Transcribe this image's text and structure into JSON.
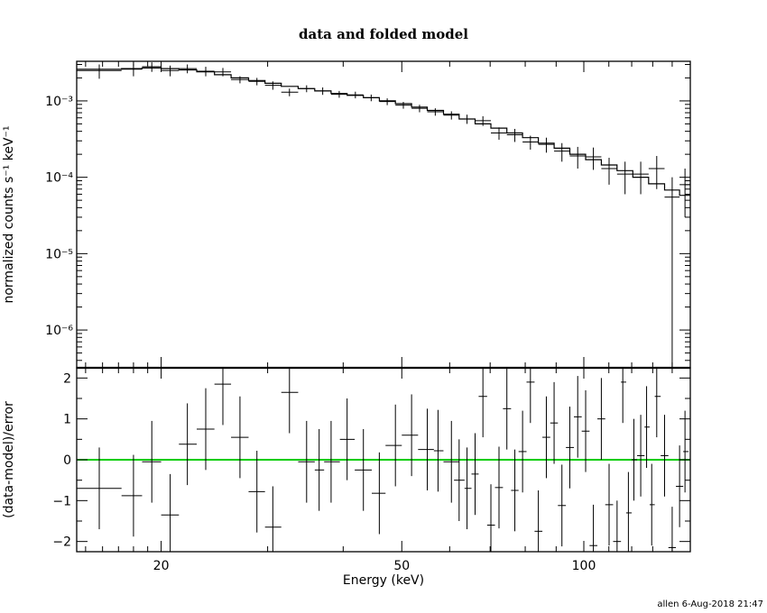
{
  "page": {
    "footer": "allen  6-Aug-2018 21:47"
  },
  "chart_data": [
    {
      "type": "line",
      "panel": "top",
      "title": "data and folded model",
      "ylabel": "normalized counts s⁻¹ keV⁻¹",
      "xscale": "log",
      "yscale": "log",
      "xlim": [
        14.5,
        150
      ],
      "ylim": [
        3.2e-07,
        0.0033
      ],
      "ytick_labels": [
        "10⁻³",
        "10⁻⁴",
        "10⁻⁵",
        "10⁻⁶"
      ],
      "ytick_values": [
        0.001,
        0.0001,
        1e-05,
        1e-06
      ],
      "model_step": {
        "name": "folded model",
        "edges": [
          14.5,
          17.2,
          18.6,
          20.0,
          21.4,
          22.9,
          24.5,
          26.1,
          27.9,
          29.7,
          31.6,
          33.7,
          35.9,
          38.2,
          40.6,
          43.2,
          45.9,
          48.8,
          51.9,
          55.1,
          58.6,
          62.2,
          66.1,
          70.2,
          74.6,
          79.2,
          84.1,
          89.3,
          94.8,
          100.7,
          106.9,
          113.5,
          120.5,
          128.0,
          136.0,
          144.0,
          150.0
        ],
        "values": [
          0.0026,
          0.00265,
          0.0027,
          0.00265,
          0.00255,
          0.0024,
          0.0022,
          0.002,
          0.00185,
          0.0017,
          0.00155,
          0.00145,
          0.00135,
          0.00125,
          0.00118,
          0.0011,
          0.001,
          0.00092,
          0.00083,
          0.00075,
          0.00067,
          0.00058,
          0.0005,
          0.00044,
          0.00038,
          0.00033,
          0.00028,
          0.00024,
          0.0002,
          0.00017,
          0.000145,
          0.000122,
          0.0001,
          8.2e-05,
          6.8e-05,
          5.8e-05
        ]
      },
      "points": [
        {
          "x": 15.8,
          "xlo": 14.5,
          "xhi": 17.2,
          "y": 0.0025,
          "ylo": 0.00195,
          "yhi": 0.003
        },
        {
          "x": 18.0,
          "xlo": 17.2,
          "xhi": 18.6,
          "y": 0.0026,
          "ylo": 0.0021,
          "yhi": 0.0031
        },
        {
          "x": 19.3,
          "xlo": 18.6,
          "xhi": 20.0,
          "y": 0.0028,
          "ylo": 0.0024,
          "yhi": 0.0032
        },
        {
          "x": 20.7,
          "xlo": 20.0,
          "xhi": 21.4,
          "y": 0.0025,
          "ylo": 0.0021,
          "yhi": 0.0029
        },
        {
          "x": 22.1,
          "xlo": 21.4,
          "xhi": 22.9,
          "y": 0.00265,
          "ylo": 0.0023,
          "yhi": 0.003
        },
        {
          "x": 23.7,
          "xlo": 22.9,
          "xhi": 24.5,
          "y": 0.00245,
          "ylo": 0.0021,
          "yhi": 0.0028
        },
        {
          "x": 25.3,
          "xlo": 24.5,
          "xhi": 26.1,
          "y": 0.0024,
          "ylo": 0.0021,
          "yhi": 0.0027
        },
        {
          "x": 27.0,
          "xlo": 26.1,
          "xhi": 27.9,
          "y": 0.0019,
          "ylo": 0.0017,
          "yhi": 0.0021
        },
        {
          "x": 28.8,
          "xlo": 27.9,
          "xhi": 29.7,
          "y": 0.0018,
          "ylo": 0.0016,
          "yhi": 0.002
        },
        {
          "x": 30.6,
          "xlo": 29.7,
          "xhi": 31.6,
          "y": 0.0016,
          "ylo": 0.0014,
          "yhi": 0.0018
        },
        {
          "x": 32.6,
          "xlo": 31.6,
          "xhi": 33.7,
          "y": 0.0013,
          "ylo": 0.00115,
          "yhi": 0.00145
        },
        {
          "x": 34.8,
          "xlo": 33.7,
          "xhi": 35.9,
          "y": 0.00145,
          "ylo": 0.0013,
          "yhi": 0.0016
        },
        {
          "x": 37.0,
          "xlo": 35.9,
          "xhi": 38.2,
          "y": 0.00135,
          "ylo": 0.0012,
          "yhi": 0.0015
        },
        {
          "x": 39.4,
          "xlo": 38.2,
          "xhi": 40.6,
          "y": 0.00122,
          "ylo": 0.0011,
          "yhi": 0.00135
        },
        {
          "x": 41.9,
          "xlo": 40.6,
          "xhi": 43.2,
          "y": 0.0012,
          "ylo": 0.00108,
          "yhi": 0.00132
        },
        {
          "x": 44.5,
          "xlo": 43.2,
          "xhi": 45.9,
          "y": 0.0011,
          "ylo": 0.00099,
          "yhi": 0.00121
        },
        {
          "x": 47.3,
          "xlo": 45.9,
          "xhi": 48.8,
          "y": 0.00098,
          "ylo": 0.00088,
          "yhi": 0.00108
        },
        {
          "x": 50.3,
          "xlo": 48.8,
          "xhi": 51.9,
          "y": 0.00088,
          "ylo": 0.00079,
          "yhi": 0.00097
        },
        {
          "x": 53.5,
          "xlo": 51.9,
          "xhi": 55.1,
          "y": 0.0008,
          "ylo": 0.00071,
          "yhi": 0.00089
        },
        {
          "x": 56.8,
          "xlo": 55.1,
          "xhi": 58.6,
          "y": 0.00072,
          "ylo": 0.00064,
          "yhi": 0.0008
        },
        {
          "x": 60.4,
          "xlo": 58.6,
          "xhi": 62.2,
          "y": 0.00065,
          "ylo": 0.00057,
          "yhi": 0.00073
        },
        {
          "x": 64.1,
          "xlo": 62.2,
          "xhi": 66.1,
          "y": 0.00058,
          "ylo": 0.0005,
          "yhi": 0.00066
        },
        {
          "x": 68.1,
          "xlo": 66.1,
          "xhi": 70.2,
          "y": 0.00055,
          "ylo": 0.00047,
          "yhi": 0.00063
        },
        {
          "x": 72.4,
          "xlo": 70.2,
          "xhi": 74.6,
          "y": 0.00038,
          "ylo": 0.00031,
          "yhi": 0.00045
        },
        {
          "x": 76.9,
          "xlo": 74.6,
          "xhi": 79.2,
          "y": 0.00036,
          "ylo": 0.00029,
          "yhi": 0.00043
        },
        {
          "x": 81.6,
          "xlo": 79.2,
          "xhi": 84.1,
          "y": 0.00029,
          "ylo": 0.00023,
          "yhi": 0.00035
        },
        {
          "x": 86.7,
          "xlo": 84.1,
          "xhi": 89.3,
          "y": 0.00027,
          "ylo": 0.00021,
          "yhi": 0.00033
        },
        {
          "x": 92.0,
          "xlo": 89.3,
          "xhi": 94.8,
          "y": 0.00022,
          "ylo": 0.00016,
          "yhi": 0.00028
        },
        {
          "x": 97.7,
          "xlo": 94.8,
          "xhi": 100.7,
          "y": 0.00019,
          "ylo": 0.00013,
          "yhi": 0.00025
        },
        {
          "x": 103.7,
          "xlo": 100.7,
          "xhi": 106.9,
          "y": 0.000185,
          "ylo": 0.000125,
          "yhi": 0.000245
        },
        {
          "x": 110.1,
          "xlo": 106.9,
          "xhi": 113.5,
          "y": 0.00013,
          "ylo": 8e-05,
          "yhi": 0.00018
        },
        {
          "x": 117.0,
          "xlo": 113.5,
          "xhi": 120.5,
          "y": 0.00011,
          "ylo": 6e-05,
          "yhi": 0.00016
        },
        {
          "x": 124.2,
          "xlo": 120.5,
          "xhi": 128.0,
          "y": 0.00011,
          "ylo": 6e-05,
          "yhi": 0.00016
        },
        {
          "x": 132.0,
          "xlo": 128.0,
          "xhi": 136.0,
          "y": 0.00013,
          "ylo": 7e-05,
          "yhi": 0.00019
        },
        {
          "x": 140.0,
          "xlo": 136.0,
          "xhi": 144.0,
          "y": 5.5e-05,
          "ylo": 3.2e-07,
          "yhi": 0.0001
        },
        {
          "x": 147.0,
          "xlo": 144.0,
          "xhi": 150.0,
          "y": 8e-05,
          "ylo": 3e-05,
          "yhi": 0.00013
        }
      ]
    },
    {
      "type": "scatter",
      "panel": "bottom",
      "xlabel": "Energy (keV)",
      "ylabel": "(data-model)/error",
      "xscale": "log",
      "xlim": [
        14.5,
        150
      ],
      "ylim": [
        -2.25,
        2.25
      ],
      "xtick_labels": [
        "20",
        "50",
        "100"
      ],
      "xtick_values": [
        20,
        50,
        100
      ],
      "ytick_labels": [
        "2",
        "1",
        "0",
        "−1",
        "−2"
      ],
      "ytick_values": [
        2,
        1,
        0,
        -1,
        -2
      ],
      "reference_line": {
        "y": 0,
        "color": "#00cc00"
      },
      "points": [
        {
          "x": 15.8,
          "xlo": 14.5,
          "xhi": 17.2,
          "y": -0.7
        },
        {
          "x": 18.0,
          "xlo": 17.2,
          "xhi": 18.6,
          "y": -0.88
        },
        {
          "x": 19.3,
          "xlo": 18.6,
          "xhi": 20.0,
          "y": -0.05
        },
        {
          "x": 20.7,
          "xlo": 20.0,
          "xhi": 21.4,
          "y": -1.35
        },
        {
          "x": 22.1,
          "xlo": 21.4,
          "xhi": 22.9,
          "y": 0.38
        },
        {
          "x": 23.7,
          "xlo": 22.9,
          "xhi": 24.5,
          "y": 0.75
        },
        {
          "x": 25.3,
          "xlo": 24.5,
          "xhi": 26.1,
          "y": 1.85
        },
        {
          "x": 27.0,
          "xlo": 26.1,
          "xhi": 27.9,
          "y": 0.55
        },
        {
          "x": 28.8,
          "xlo": 27.9,
          "xhi": 29.7,
          "y": -0.78
        },
        {
          "x": 30.6,
          "xlo": 29.7,
          "xhi": 31.6,
          "y": -1.65
        },
        {
          "x": 32.6,
          "xlo": 31.6,
          "xhi": 33.7,
          "y": 1.65
        },
        {
          "x": 34.8,
          "xlo": 33.7,
          "xhi": 35.9,
          "y": -0.05
        },
        {
          "x": 36.5,
          "xlo": 35.9,
          "xhi": 37.2,
          "y": -0.25
        },
        {
          "x": 38.2,
          "xlo": 37.2,
          "xhi": 39.5,
          "y": -0.05
        },
        {
          "x": 40.6,
          "xlo": 39.5,
          "xhi": 41.8,
          "y": 0.5
        },
        {
          "x": 43.2,
          "xlo": 41.8,
          "xhi": 44.6,
          "y": -0.25
        },
        {
          "x": 45.9,
          "xlo": 44.6,
          "xhi": 47.0,
          "y": -0.82
        },
        {
          "x": 48.8,
          "xlo": 47.0,
          "xhi": 50.0,
          "y": 0.35
        },
        {
          "x": 51.9,
          "xlo": 50.0,
          "xhi": 53.2,
          "y": 0.6
        },
        {
          "x": 55.1,
          "xlo": 53.2,
          "xhi": 56.5,
          "y": 0.25
        },
        {
          "x": 57.4,
          "xlo": 56.5,
          "xhi": 58.6,
          "y": 0.22
        },
        {
          "x": 60.4,
          "xlo": 58.6,
          "xhi": 62.2,
          "y": -0.05
        },
        {
          "x": 62.2,
          "xlo": 61.0,
          "xhi": 63.5,
          "y": -0.5
        },
        {
          "x": 64.1,
          "xlo": 63.5,
          "xhi": 65.2,
          "y": -0.7
        },
        {
          "x": 66.1,
          "xlo": 65.2,
          "xhi": 67.0,
          "y": -0.35
        },
        {
          "x": 68.1,
          "xlo": 67.0,
          "xhi": 69.2,
          "y": 1.55
        },
        {
          "x": 70.2,
          "xlo": 69.2,
          "xhi": 71.3,
          "y": -1.6
        },
        {
          "x": 72.4,
          "xlo": 71.3,
          "xhi": 73.5,
          "y": -0.68
        },
        {
          "x": 74.6,
          "xlo": 73.5,
          "xhi": 75.8,
          "y": 1.25
        },
        {
          "x": 76.9,
          "xlo": 75.8,
          "xhi": 78.0,
          "y": -0.75
        },
        {
          "x": 79.2,
          "xlo": 78.0,
          "xhi": 80.4,
          "y": 0.2
        },
        {
          "x": 81.6,
          "xlo": 80.4,
          "xhi": 82.9,
          "y": 1.9
        },
        {
          "x": 84.1,
          "xlo": 82.9,
          "xhi": 85.4,
          "y": -1.75
        },
        {
          "x": 86.7,
          "xlo": 85.4,
          "xhi": 88.0,
          "y": 0.55
        },
        {
          "x": 89.3,
          "xlo": 88.0,
          "xhi": 90.6,
          "y": 0.9
        },
        {
          "x": 92.0,
          "xlo": 90.6,
          "xhi": 93.4,
          "y": -1.12
        },
        {
          "x": 94.8,
          "xlo": 93.4,
          "xhi": 96.3,
          "y": 0.3
        },
        {
          "x": 97.7,
          "xlo": 96.3,
          "xhi": 99.2,
          "y": 1.05
        },
        {
          "x": 100.7,
          "xlo": 99.2,
          "xhi": 102.2,
          "y": 0.7
        },
        {
          "x": 103.7,
          "xlo": 102.2,
          "xhi": 105.3,
          "y": -2.1
        },
        {
          "x": 106.9,
          "xlo": 105.3,
          "xhi": 108.5,
          "y": 1.0
        },
        {
          "x": 110.1,
          "xlo": 108.5,
          "xhi": 111.8,
          "y": -1.1
        },
        {
          "x": 113.5,
          "xlo": 111.8,
          "xhi": 115.2,
          "y": -2.0
        },
        {
          "x": 116.0,
          "xlo": 115.2,
          "xhi": 117.5,
          "y": 1.9
        },
        {
          "x": 118.5,
          "xlo": 117.5,
          "xhi": 120.0,
          "y": -1.3
        },
        {
          "x": 121.0,
          "xlo": 120.0,
          "xhi": 122.5,
          "y": 0.0
        },
        {
          "x": 124.2,
          "xlo": 122.5,
          "xhi": 126.0,
          "y": 0.1
        },
        {
          "x": 127.0,
          "xlo": 126.0,
          "xhi": 128.5,
          "y": 0.8
        },
        {
          "x": 129.5,
          "xlo": 128.5,
          "xhi": 131.0,
          "y": -1.1
        },
        {
          "x": 132.0,
          "xlo": 131.0,
          "xhi": 134.0,
          "y": 1.55
        },
        {
          "x": 136.0,
          "xlo": 134.0,
          "xhi": 138.0,
          "y": 0.1
        },
        {
          "x": 140.0,
          "xlo": 138.0,
          "xhi": 142.0,
          "y": -2.15
        },
        {
          "x": 144.0,
          "xlo": 142.0,
          "xhi": 146.0,
          "y": -0.65
        },
        {
          "x": 147.0,
          "xlo": 146.0,
          "xhi": 149.0,
          "y": 0.2
        }
      ]
    }
  ]
}
